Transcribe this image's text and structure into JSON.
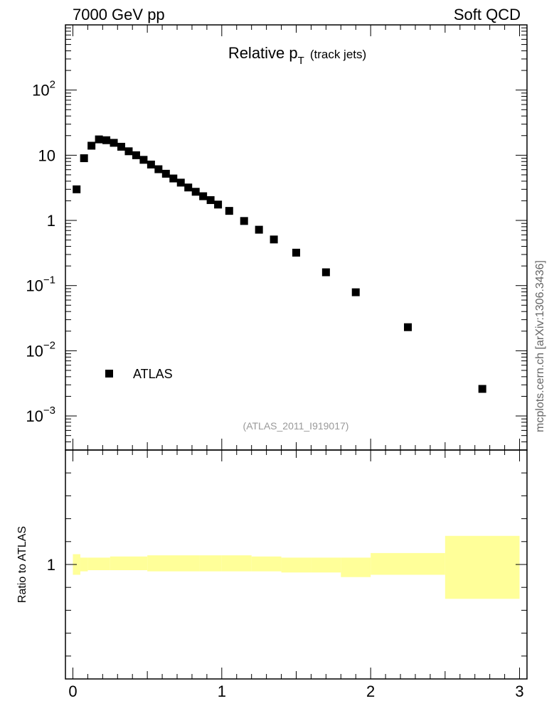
{
  "header": {
    "left": "7000 GeV pp",
    "right": "Soft QCD"
  },
  "side_label": "mcplots.cern.ch [arXiv:1306.3436]",
  "chart_data": [
    {
      "type": "scatter",
      "title_main": "Relative p",
      "title_sub": "T",
      "title_extra": "(track jets)",
      "annotation": "(ATLAS_2011_I919017)",
      "xlim": [
        -0.05,
        3.05
      ],
      "ylim": [
        0.0003,
        1000
      ],
      "yscale": "log",
      "yticks": [
        {
          "value": 0.001,
          "base": "10",
          "exp": "−3"
        },
        {
          "value": 0.01,
          "base": "10",
          "exp": "−2"
        },
        {
          "value": 0.1,
          "base": "10",
          "exp": "−1"
        },
        {
          "value": 1,
          "base": "1",
          "exp": ""
        },
        {
          "value": 10,
          "base": "10",
          "exp": ""
        },
        {
          "value": 100,
          "base": "10",
          "exp": "2"
        }
      ],
      "legend": {
        "label": "ATLAS",
        "placement": "bottom-left"
      },
      "series": [
        {
          "name": "ATLAS",
          "color": "#000000",
          "x": [
            0.025,
            0.075,
            0.125,
            0.175,
            0.225,
            0.275,
            0.325,
            0.375,
            0.425,
            0.475,
            0.525,
            0.575,
            0.625,
            0.675,
            0.725,
            0.775,
            0.825,
            0.875,
            0.925,
            0.975,
            1.05,
            1.15,
            1.25,
            1.35,
            1.5,
            1.7,
            1.9,
            2.25,
            2.75
          ],
          "y": [
            3.0,
            9.0,
            14.0,
            17.5,
            17.0,
            15.5,
            13.5,
            11.5,
            10.0,
            8.5,
            7.2,
            6.1,
            5.2,
            4.4,
            3.8,
            3.2,
            2.75,
            2.35,
            2.05,
            1.75,
            1.4,
            0.98,
            0.72,
            0.51,
            0.32,
            0.16,
            0.079,
            0.023,
            0.0026
          ]
        }
      ]
    },
    {
      "type": "area",
      "ylabel": "Ratio to ATLAS",
      "xlim": [
        -0.05,
        3.05
      ],
      "ylim": [
        0.5,
        1.5
      ],
      "yticks": [
        {
          "value": 1,
          "label": "1"
        }
      ],
      "xticks": [
        {
          "value": 0,
          "label": "0"
        },
        {
          "value": 1,
          "label": "1"
        },
        {
          "value": 2,
          "label": "2"
        },
        {
          "value": 3,
          "label": "3"
        }
      ],
      "band_color": "#ffff99",
      "band": [
        {
          "x0": 0.0,
          "x1": 0.05,
          "lo": 0.955,
          "hi": 1.045
        },
        {
          "x0": 0.05,
          "x1": 0.1,
          "lo": 0.97,
          "hi": 1.03
        },
        {
          "x0": 0.1,
          "x1": 0.25,
          "lo": 0.975,
          "hi": 1.03
        },
        {
          "x0": 0.25,
          "x1": 0.5,
          "lo": 0.975,
          "hi": 1.035
        },
        {
          "x0": 0.5,
          "x1": 0.85,
          "lo": 0.97,
          "hi": 1.04
        },
        {
          "x0": 0.85,
          "x1": 1.0,
          "lo": 0.97,
          "hi": 1.04
        },
        {
          "x0": 1.0,
          "x1": 1.2,
          "lo": 0.97,
          "hi": 1.04
        },
        {
          "x0": 1.2,
          "x1": 1.4,
          "lo": 0.97,
          "hi": 1.035
        },
        {
          "x0": 1.4,
          "x1": 1.6,
          "lo": 0.965,
          "hi": 1.03
        },
        {
          "x0": 1.6,
          "x1": 1.8,
          "lo": 0.965,
          "hi": 1.03
        },
        {
          "x0": 1.8,
          "x1": 2.0,
          "lo": 0.945,
          "hi": 1.03
        },
        {
          "x0": 2.0,
          "x1": 2.5,
          "lo": 0.955,
          "hi": 1.05
        },
        {
          "x0": 2.5,
          "x1": 3.0,
          "lo": 0.85,
          "hi": 1.125
        }
      ]
    }
  ]
}
